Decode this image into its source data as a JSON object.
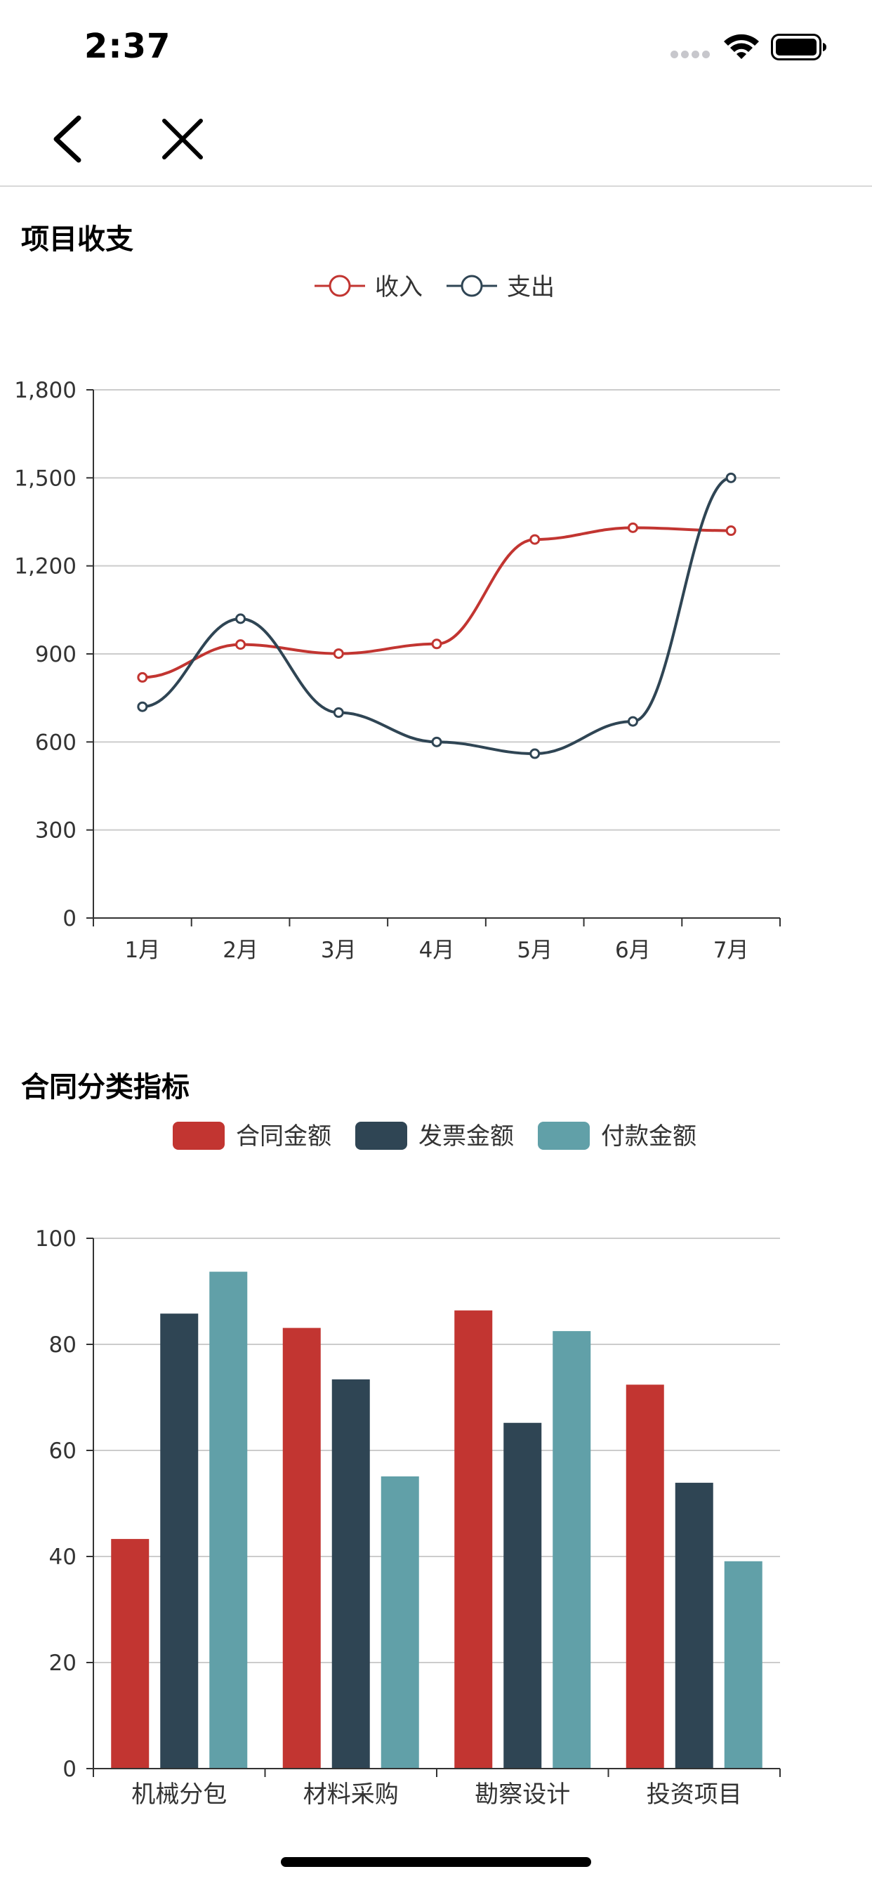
{
  "status_bar": {
    "time": "2:37",
    "icons": [
      "cellular-signal-icon",
      "wifi-icon",
      "battery-icon"
    ]
  },
  "nav": {
    "back_icon": "chevron-left-icon",
    "close_icon": "close-icon"
  },
  "colors": {
    "red": "#c23531",
    "navy": "#2f4554",
    "teal": "#61a0a8",
    "axis": "#333333",
    "grid": "#cccccc"
  },
  "chart_data": [
    {
      "type": "line",
      "title": "项目收支",
      "legend_position": "top-center",
      "categories": [
        "1月",
        "2月",
        "3月",
        "4月",
        "5月",
        "6月",
        "7月"
      ],
      "series": [
        {
          "name": "收入",
          "color": "#c23531",
          "values": [
            820,
            932,
            901,
            934,
            1290,
            1330,
            1320
          ]
        },
        {
          "name": "支出",
          "color": "#2f4554",
          "values": [
            720,
            1020,
            700,
            600,
            560,
            670,
            1500
          ]
        }
      ],
      "yticks": [
        "0",
        "300",
        "600",
        "900",
        "1,200",
        "1,500",
        "1,800"
      ],
      "ylim": [
        0,
        1800
      ],
      "smooth": true,
      "grid": true
    },
    {
      "type": "bar",
      "title": "合同分类指标",
      "legend_position": "top-center",
      "categories": [
        "机械分包",
        "材料采购",
        "勘察设计",
        "投资项目"
      ],
      "series": [
        {
          "name": "合同金额",
          "color": "#c23531",
          "values": [
            43.3,
            83.1,
            86.4,
            72.4
          ]
        },
        {
          "name": "发票金额",
          "color": "#2f4554",
          "values": [
            85.8,
            73.4,
            65.2,
            53.9
          ]
        },
        {
          "name": "付款金额",
          "color": "#61a0a8",
          "values": [
            93.7,
            55.1,
            82.5,
            39.1
          ]
        }
      ],
      "yticks": [
        "0",
        "20",
        "40",
        "60",
        "80",
        "100"
      ],
      "ylim": [
        0,
        100
      ],
      "grid": true
    }
  ]
}
